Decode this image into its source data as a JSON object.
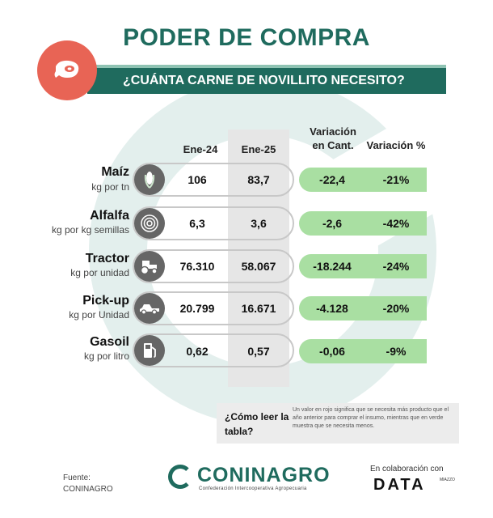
{
  "header": {
    "title": "PODER DE COMPRA",
    "subtitle": "¿CUÁNTA CARNE DE NOVILLITO NECESITO?",
    "icon": "meat-icon",
    "colors": {
      "primary": "#1f6b5e",
      "accent": "#e86455",
      "positive": "#a9dfa2"
    }
  },
  "table": {
    "columns": {
      "ene24": "Ene-24",
      "ene25": "Ene-25",
      "var_cant": [
        "Variación",
        "en Cant."
      ],
      "var_pct": "Variación %"
    },
    "rows": [
      {
        "name": "Maíz",
        "unit": "kg por tn",
        "icon": "corn-icon",
        "ene24": "106",
        "ene25": "83,7",
        "var_cant": "-22,4",
        "var_pct": "-21%"
      },
      {
        "name": "Alfalfa",
        "unit": "kg por kg semillas",
        "icon": "seeds-icon",
        "ene24": "6,3",
        "ene25": "3,6",
        "var_cant": "-2,6",
        "var_pct": "-42%"
      },
      {
        "name": "Tractor",
        "unit": "kg por unidad",
        "icon": "tractor-icon",
        "ene24": "76.310",
        "ene25": "58.067",
        "var_cant": "-18.244",
        "var_pct": "-24%"
      },
      {
        "name": "Pick-up",
        "unit": "kg por Unidad",
        "icon": "pickup-icon",
        "ene24": "20.799",
        "ene25": "16.671",
        "var_cant": "-4.128",
        "var_pct": "-20%"
      },
      {
        "name": "Gasoil",
        "unit": "kg por litro",
        "icon": "fuel-pump-icon",
        "ene24": "0,62",
        "ene25": "0,57",
        "var_cant": "-0,06",
        "var_pct": "-9%"
      }
    ]
  },
  "howto": {
    "question": "¿Cómo leer la tabla?",
    "text": "Un valor en rojo significa que se necesita más producto que el año anterior para comprar el insumo, mientras que en verde muestra que se necesita menos."
  },
  "footer": {
    "fuente_label": "Fuente:",
    "fuente_value": "CONINAGRO",
    "logo_name": "CONINAGRO",
    "logo_sub": "Confederación Intercooperativa Agropecuaria",
    "collab": "En colaboración con",
    "partner": "DATA",
    "partner_sub": "MIAZZO"
  }
}
